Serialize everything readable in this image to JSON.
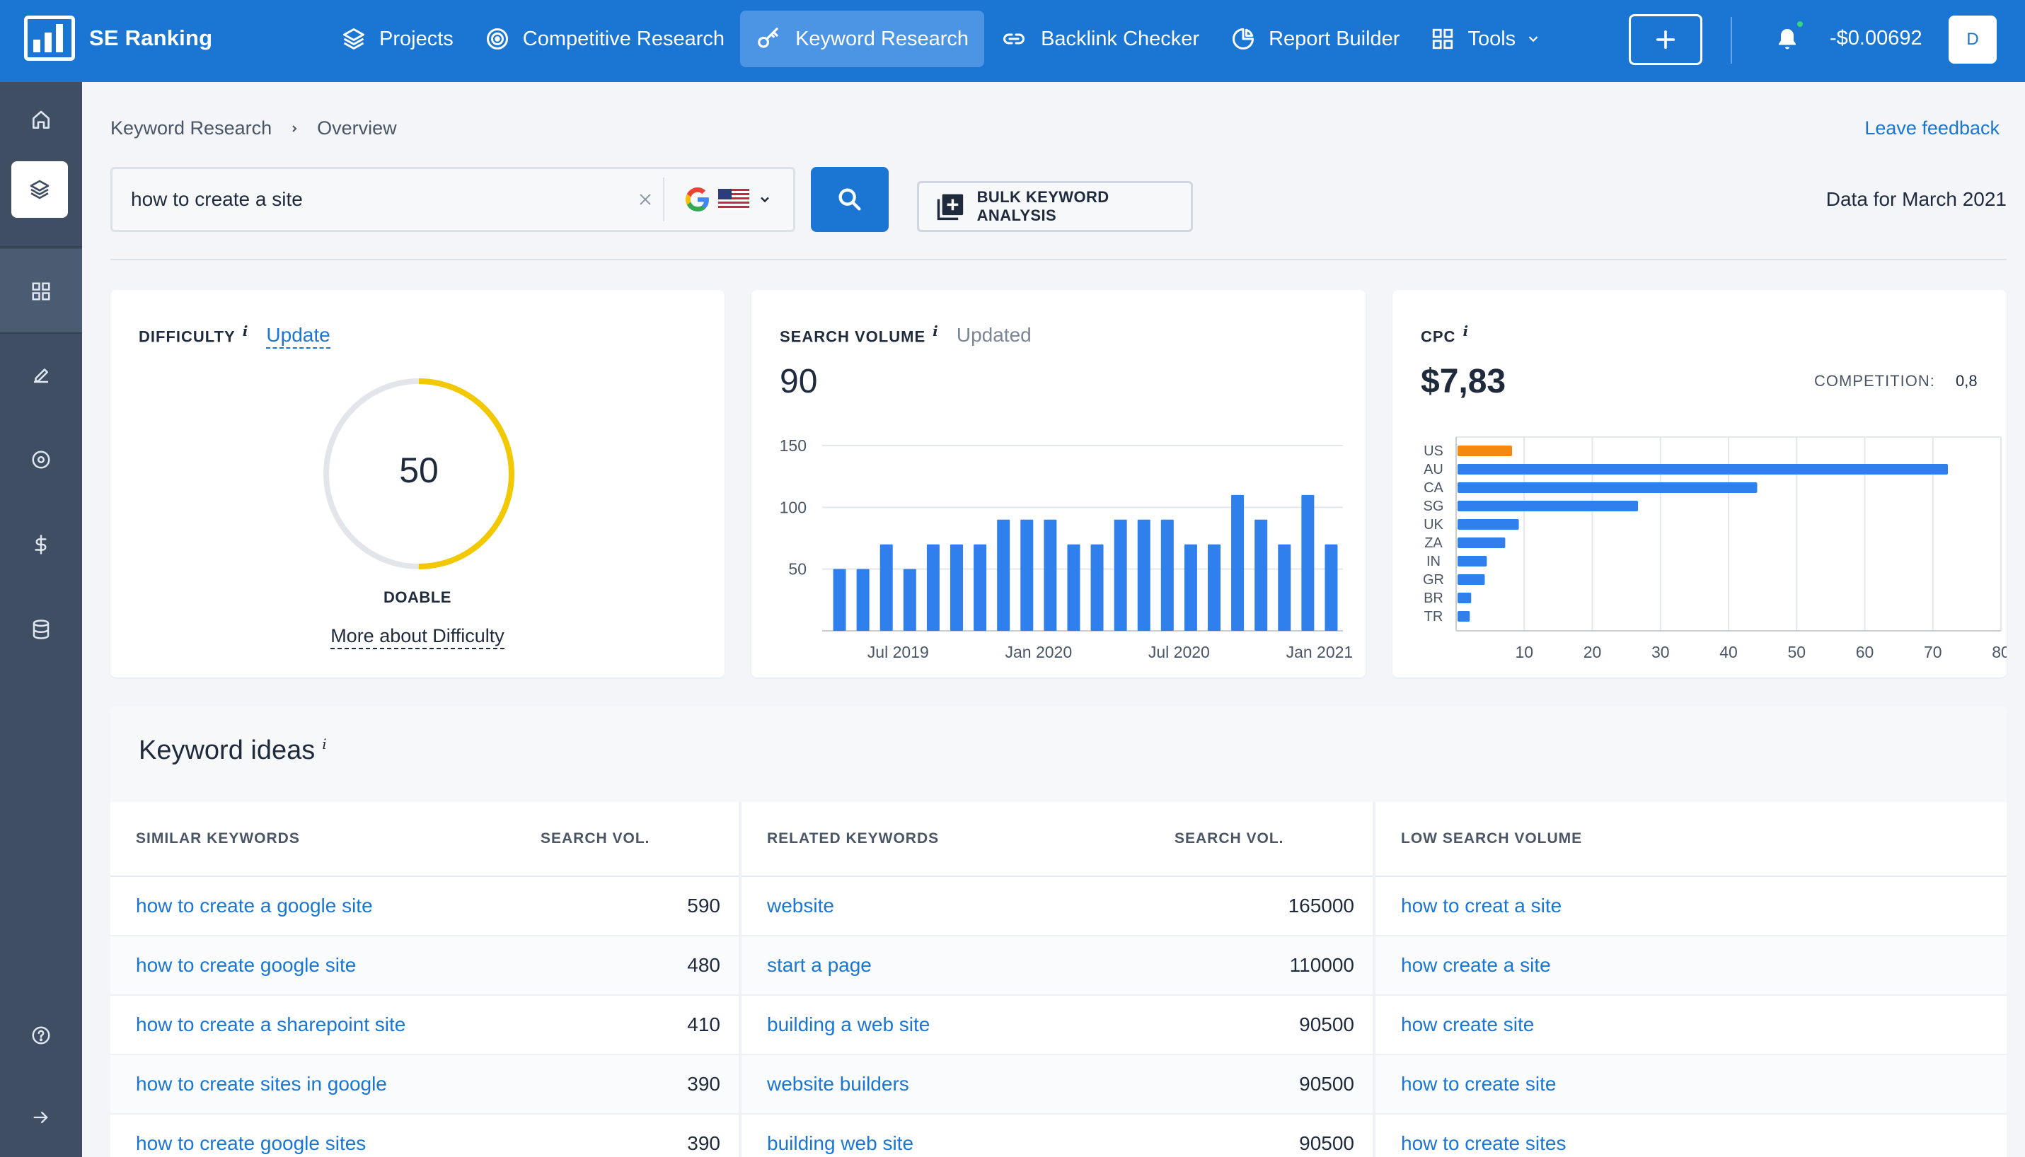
{
  "brand": {
    "name": "SE Ranking"
  },
  "nav": [
    {
      "label": "Projects",
      "icon": "layers-icon",
      "active": false
    },
    {
      "label": "Competitive Research",
      "icon": "target-icon",
      "active": false
    },
    {
      "label": "Keyword Research",
      "icon": "key-icon",
      "active": true
    },
    {
      "label": "Backlink Checker",
      "icon": "link-icon",
      "active": false
    },
    {
      "label": "Report Builder",
      "icon": "pie-icon",
      "active": false
    },
    {
      "label": "Tools",
      "icon": "grid-icon",
      "active": false
    }
  ],
  "header": {
    "balance": "-$0.00692",
    "avatar": "D"
  },
  "breadcrumb": {
    "root": "Keyword Research",
    "current": "Overview"
  },
  "feedback_link": "Leave feedback",
  "search": {
    "value": "how to create a site",
    "engine": "Google",
    "country": "US"
  },
  "bulk_button": "BULK KEYWORD ANALYSIS",
  "data_for": "Data for March 2021",
  "difficulty": {
    "label": "DIFFICULTY",
    "update_link": "Update",
    "value": "50",
    "score": 50,
    "max": 100,
    "status": "DOABLE",
    "more_link": "More about Difficulty"
  },
  "search_volume": {
    "label": "SEARCH VOLUME",
    "updated": "Updated",
    "value": "90"
  },
  "cpc": {
    "label": "CPC",
    "value": "$7,83",
    "competition_label": "COMPETITION:",
    "competition_value": "0,8"
  },
  "chart_data": [
    {
      "type": "bar",
      "title": "",
      "ylim": [
        0,
        150
      ],
      "yticks": [
        50,
        100,
        150
      ],
      "xtick_labels": [
        "Jul 2019",
        "Jan 2020",
        "Jul 2020",
        "Jan 2021"
      ],
      "xtick_index": [
        2.5,
        8.5,
        14.5,
        20.5
      ],
      "values": [
        50,
        50,
        70,
        50,
        70,
        70,
        70,
        90,
        90,
        90,
        70,
        70,
        90,
        90,
        90,
        70,
        70,
        110,
        90,
        70,
        110,
        70
      ],
      "color": "#2f80ed"
    },
    {
      "type": "bar",
      "orientation": "horizontal",
      "title": "",
      "categories": [
        "US",
        "AU",
        "CA",
        "SG",
        "UK",
        "ZA",
        "IN",
        "GR",
        "BR",
        "TR"
      ],
      "values": [
        8,
        72,
        44,
        26.5,
        9,
        7,
        4.3,
        4,
        2,
        1.8
      ],
      "xlim": [
        0,
        80
      ],
      "xticks": [
        10,
        20,
        30,
        40,
        50,
        60,
        70,
        80
      ],
      "highlight_color": "#f5890f",
      "color": "#2f80ed"
    }
  ],
  "ideas": {
    "title": "Keyword ideas",
    "similar": {
      "header": "SIMILAR KEYWORDS",
      "vol_header": "SEARCH VOL.",
      "rows": [
        {
          "kw": "how to create a google site",
          "vol": "590"
        },
        {
          "kw": "how to create google site",
          "vol": "480"
        },
        {
          "kw": "how to create a sharepoint site",
          "vol": "410"
        },
        {
          "kw": "how to create sites in google",
          "vol": "390"
        },
        {
          "kw": "how to create google sites",
          "vol": "390"
        }
      ]
    },
    "related": {
      "header": "RELATED KEYWORDS",
      "vol_header": "SEARCH VOL.",
      "rows": [
        {
          "kw": "website",
          "vol": "165000"
        },
        {
          "kw": "start a page",
          "vol": "110000"
        },
        {
          "kw": "building a web site",
          "vol": "90500"
        },
        {
          "kw": "website builders",
          "vol": "90500"
        },
        {
          "kw": "building web site",
          "vol": "90500"
        }
      ]
    },
    "low": {
      "header": "LOW SEARCH VOLUME",
      "rows": [
        {
          "kw": "how to creat a site"
        },
        {
          "kw": "how create a site"
        },
        {
          "kw": "how create site"
        },
        {
          "kw": "how to create site"
        },
        {
          "kw": "how to create sites"
        }
      ]
    }
  }
}
